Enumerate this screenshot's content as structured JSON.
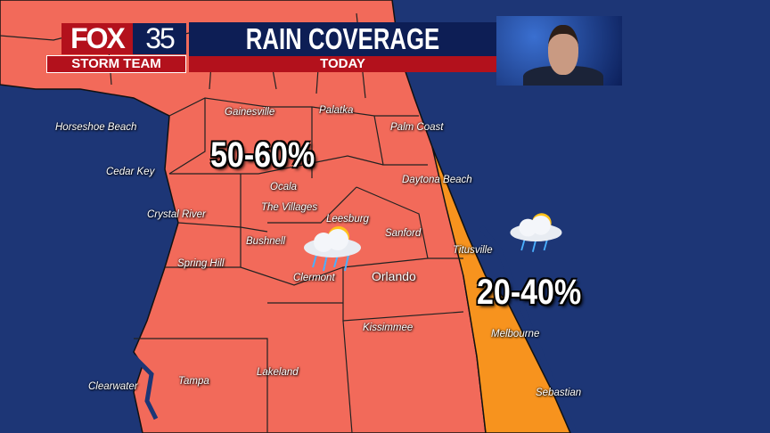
{
  "header": {
    "logo_network": "FOX",
    "logo_channel": "35",
    "logo_team": "STORM TEAM",
    "title": "RAIN COVERAGE",
    "subtitle": "TODAY"
  },
  "zones": [
    {
      "label": "50-60%",
      "color": "#f26a5a"
    },
    {
      "label": "20-40%",
      "color": "#f7931e"
    }
  ],
  "ocean_color": "#1d3676",
  "cities": [
    "Gainesville",
    "Palatka",
    "Palm Coast",
    "Horseshoe Beach",
    "Cedar Key",
    "Ocala",
    "Daytona Beach",
    "Crystal River",
    "The Villages",
    "Leesburg",
    "Bushnell",
    "Sanford",
    "Titusville",
    "Spring Hill",
    "Clermont",
    "Orlando",
    "Kissimmee",
    "Melbourne",
    "Clearwater",
    "Tampa",
    "Lakeland",
    "Sebastian"
  ],
  "icons": [
    "sun-cloud-rain-icon",
    "sun-cloud-rain-icon"
  ]
}
